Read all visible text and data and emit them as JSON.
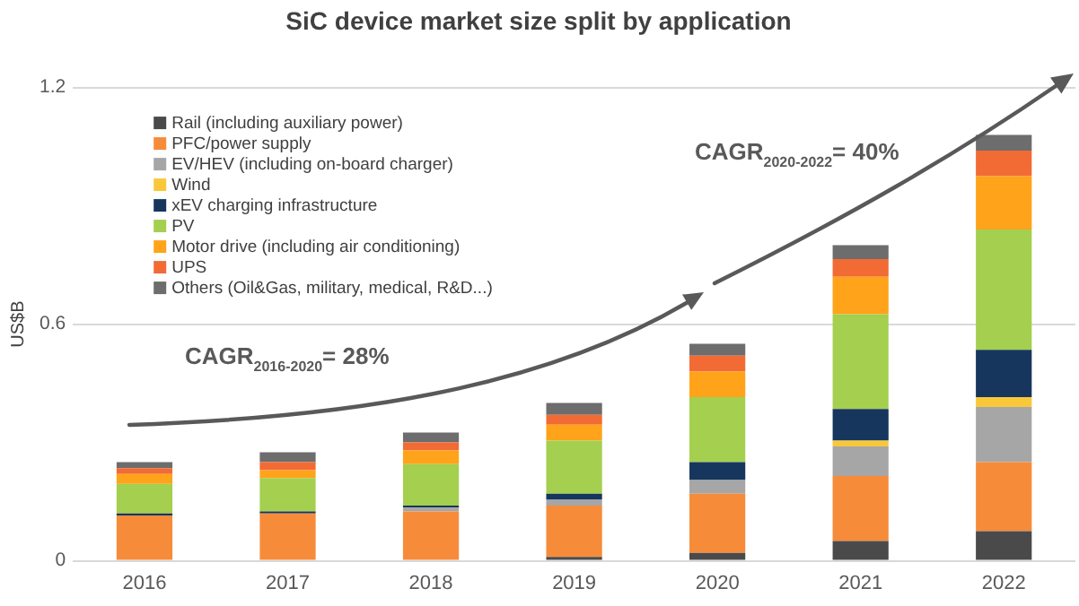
{
  "chart_data": {
    "type": "bar",
    "title": "SiC device market size split by application",
    "ylabel": "US$B",
    "categories": [
      "2016",
      "2017",
      "2018",
      "2019",
      "2020",
      "2021",
      "2022"
    ],
    "series": [
      {
        "name": "Rail (including auxiliary power)",
        "color": "#4a4a4a",
        "values": [
          0,
          0,
          0,
          0.01,
          0.02,
          0.05,
          0.075
        ]
      },
      {
        "name": "PFC/power supply",
        "color": "#f68b3a",
        "values": [
          0.115,
          0.12,
          0.125,
          0.13,
          0.15,
          0.165,
          0.175
        ]
      },
      {
        "name": "EV/HEV (including on-board charger)",
        "color": "#a6a6a6",
        "values": [
          0,
          0,
          0.01,
          0.015,
          0.035,
          0.075,
          0.14
        ]
      },
      {
        "name": "Wind",
        "color": "#f9c83a",
        "values": [
          0,
          0,
          0,
          0,
          0,
          0.015,
          0.025
        ]
      },
      {
        "name": "xEV charging infrastructure",
        "color": "#17365d",
        "values": [
          0.005,
          0.005,
          0.005,
          0.015,
          0.045,
          0.08,
          0.12
        ]
      },
      {
        "name": "PV",
        "color": "#a4cf4f",
        "values": [
          0.075,
          0.085,
          0.105,
          0.135,
          0.165,
          0.24,
          0.305
        ]
      },
      {
        "name": "Motor drive (including air conditioning)",
        "color": "#ffa31a",
        "values": [
          0.025,
          0.02,
          0.035,
          0.04,
          0.065,
          0.095,
          0.135
        ]
      },
      {
        "name": "UPS",
        "color": "#f26b35",
        "values": [
          0.015,
          0.02,
          0.02,
          0.025,
          0.04,
          0.045,
          0.065
        ]
      },
      {
        "name": "Others (Oil&Gas, military, medical, R&D...)",
        "color": "#6d6d6d",
        "values": [
          0.015,
          0.025,
          0.025,
          0.03,
          0.03,
          0.035,
          0.04
        ]
      }
    ],
    "stacked": true,
    "ylim": [
      0,
      1.2
    ],
    "yticks": [
      0,
      0.6,
      1.2
    ],
    "grid": "y",
    "legend": "top left",
    "annotations": [
      "CAGR$_{2016-2020}$= 28%",
      "CAGR$_{2020-2022}$= 40%"
    ]
  }
}
